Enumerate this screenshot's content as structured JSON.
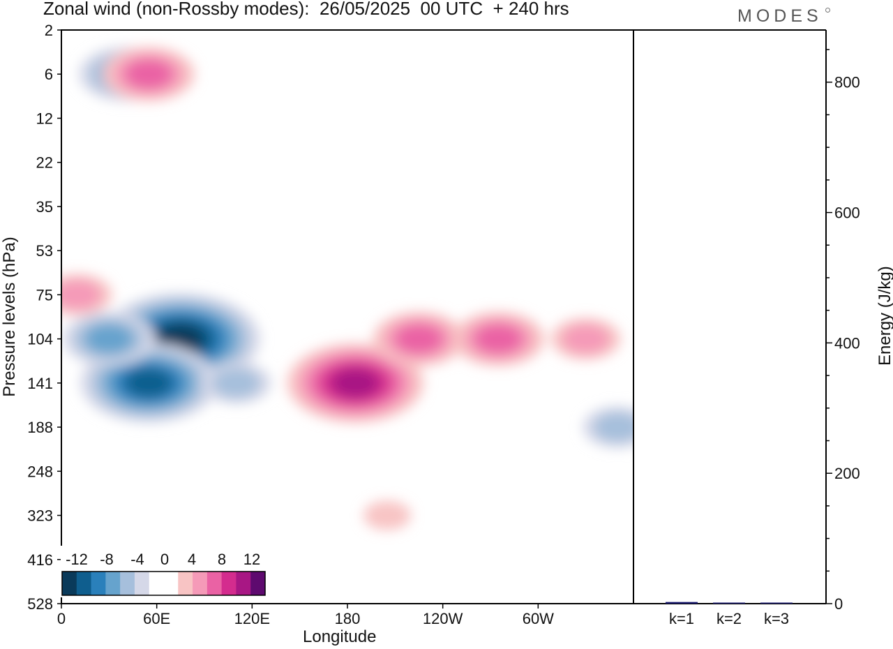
{
  "figure": {
    "title": "Zonal wind (non-Rossby modes):  26/05/2025  00 UTC  + 240 hrs",
    "brand": "MODES"
  },
  "chart_data": [
    {
      "type": "heatmap",
      "title": "Zonal wind (non-Rossby modes):  26/05/2025  00 UTC  + 240 hrs",
      "xlabel": "Longitude",
      "ylabel": "Pressure levels (hPa)",
      "x_tick_labels": [
        "0",
        "60E",
        "120E",
        "180",
        "120W",
        "60W"
      ],
      "x_tick_degrees": [
        0,
        60,
        120,
        180,
        240,
        300
      ],
      "xlim": [
        0,
        360
      ],
      "y_tick_labels": [
        "2",
        "6",
        "12",
        "22",
        "35",
        "53",
        "75",
        "104",
        "141",
        "188",
        "248",
        "323",
        "416",
        "528"
      ],
      "colorbar": {
        "labels": [
          "-12",
          "-8",
          "-4",
          "0",
          "4",
          "8",
          "12"
        ],
        "levels": [
          -14,
          -12,
          -10,
          -8,
          -6,
          -4,
          -2,
          0,
          2,
          4,
          6,
          8,
          10,
          12,
          14
        ],
        "colors": [
          "#0a3a5a",
          "#0f5e8e",
          "#2a80bb",
          "#66a3cd",
          "#a6bfdc",
          "#d5d8e8",
          "#ffffff",
          "#ffffff",
          "#f8c4c4",
          "#f59ab8",
          "#ea62a4",
          "#d42c8e",
          "#a81784",
          "#5e0a6f"
        ]
      },
      "features": [
        {
          "lon": 75,
          "level": 104,
          "value": -13
        },
        {
          "lon": 55,
          "level": 141,
          "value": -11
        },
        {
          "lon": 30,
          "level": 104,
          "value": -7
        },
        {
          "lon": 110,
          "level": 141,
          "value": -5
        },
        {
          "lon": 185,
          "level": 141,
          "value": 11
        },
        {
          "lon": 225,
          "level": 104,
          "value": 6
        },
        {
          "lon": 275,
          "level": 104,
          "value": 7
        },
        {
          "lon": 330,
          "level": 104,
          "value": 4
        },
        {
          "lon": 10,
          "level": 75,
          "value": 5
        },
        {
          "lon": 205,
          "level": 323,
          "value": 3
        },
        {
          "lon": 350,
          "level": 188,
          "value": -5
        },
        {
          "lon": 40,
          "level": 6,
          "value": -6
        },
        {
          "lon": 55,
          "level": 6,
          "value": 7
        }
      ]
    },
    {
      "type": "bar",
      "ylabel": "Energy (J/kg)",
      "categories": [
        "k=1",
        "k=2",
        "k=3"
      ],
      "values": [
        2.5,
        1.2,
        0.8
      ],
      "ylim": [
        0,
        880
      ],
      "y_tick_labels": [
        "0",
        "200",
        "400",
        "600",
        "800"
      ],
      "bar_color": "#1a1a6e"
    }
  ]
}
